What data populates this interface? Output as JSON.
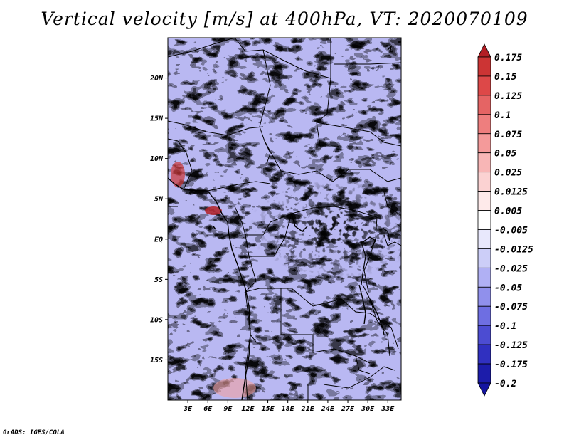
{
  "title": "Vertical velocity [m/s] at 400hPa, VT: 2020070109",
  "credit": "GrADS: IGES/COLA",
  "map": {
    "lat_labels": [
      "20N",
      "15N",
      "10N",
      "5N",
      "EQ",
      "5S",
      "10S",
      "15S"
    ],
    "lat_values": [
      20,
      15,
      10,
      5,
      0,
      -5,
      -10,
      -15
    ],
    "lon_labels": [
      "3E",
      "6E",
      "9E",
      "12E",
      "15E",
      "18E",
      "21E",
      "24E",
      "27E",
      "30E",
      "33E"
    ],
    "lon_values": [
      3,
      6,
      9,
      12,
      15,
      18,
      21,
      24,
      27,
      30,
      33
    ],
    "lon_range": [
      0,
      35
    ],
    "lat_range": [
      -20,
      25
    ]
  },
  "colorbar": {
    "labels": [
      "0.175",
      "0.15",
      "0.125",
      "0.1",
      "0.075",
      "0.05",
      "0.025",
      "0.0125",
      "0.005",
      "-0.005",
      "-0.0125",
      "-0.025",
      "-0.05",
      "-0.075",
      "-0.1",
      "-0.125",
      "-0.175",
      "-0.2"
    ],
    "colors": [
      "#b21e24",
      "#cc3434",
      "#dd4848",
      "#e56464",
      "#ee7e7e",
      "#f49a9a",
      "#f8b6b6",
      "#fbd2d2",
      "#feeaea",
      "#ffffff",
      "#e8e8fc",
      "#cccef8",
      "#b0b0f4",
      "#9090ec",
      "#6e6ee2",
      "#4c4cd2",
      "#3030c0",
      "#1c1caa",
      "#1414a0"
    ]
  }
}
